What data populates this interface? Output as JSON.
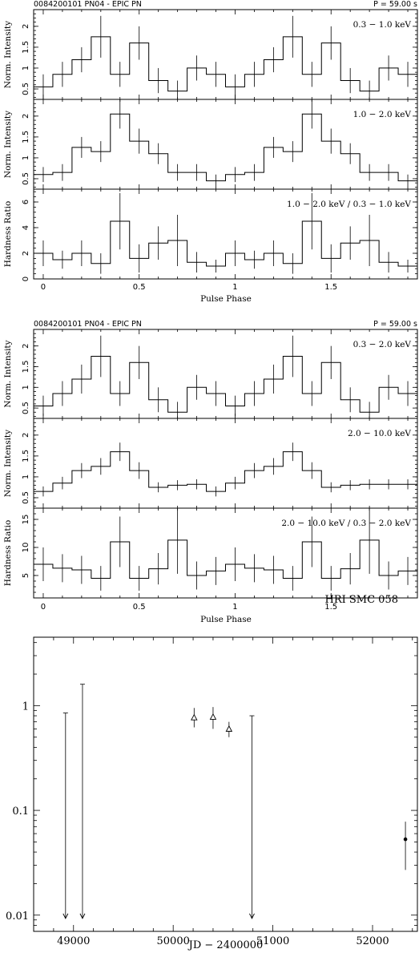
{
  "blocks": [
    {
      "header_left": "0084200101 PN04 - EPIC PN",
      "header_right": "P =  59.00 s",
      "xlabel": "Pulse Phase",
      "panels": [
        {
          "band": "0.3 − 1.0 keV",
          "ylabel": "Norm. Intensity",
          "values": [
            0.55,
            0.85,
            1.2,
            1.75,
            0.85,
            1.6,
            0.7,
            0.45,
            1.0,
            0.85,
            0.55,
            0.85,
            1.2,
            1.75,
            0.85,
            1.6,
            0.7,
            0.45,
            1.0,
            0.85
          ],
          "errors": [
            0.3,
            0.3,
            0.3,
            0.5,
            0.3,
            0.4,
            0.3,
            0.25,
            0.3,
            0.3,
            0.3,
            0.3,
            0.3,
            0.5,
            0.3,
            0.4,
            0.3,
            0.25,
            0.3,
            0.3
          ],
          "ylim": [
            0.25,
            2.4
          ],
          "yticks": [
            0.5,
            1,
            1.5,
            2
          ]
        },
        {
          "band": "1.0 − 2.0 keV",
          "ylabel": "Norm. Intensity",
          "values": [
            0.6,
            0.65,
            1.25,
            1.15,
            2.05,
            1.4,
            1.1,
            0.65,
            0.65,
            0.45,
            0.6,
            0.65,
            1.25,
            1.15,
            2.05,
            1.4,
            1.1,
            0.65,
            0.65,
            0.45
          ],
          "errors": [
            0.18,
            0.2,
            0.25,
            0.25,
            0.35,
            0.3,
            0.25,
            0.2,
            0.2,
            0.15,
            0.18,
            0.2,
            0.25,
            0.25,
            0.35,
            0.3,
            0.25,
            0.2,
            0.2,
            0.15
          ],
          "ylim": [
            0.25,
            2.4
          ],
          "yticks": [
            0.5,
            1,
            1.5,
            2
          ]
        },
        {
          "band": "1.0 − 2.0 keV / 0.3 − 1.0 keV",
          "ylabel": "Hardness Ratio",
          "values": [
            2.0,
            1.5,
            2.0,
            1.2,
            4.5,
            1.6,
            2.8,
            3.0,
            1.3,
            1.0,
            2.0,
            1.5,
            2.0,
            1.2,
            4.5,
            1.6,
            2.8,
            3.0,
            1.3,
            1.0
          ],
          "errors": [
            1.0,
            0.7,
            1.0,
            0.8,
            2.2,
            1.1,
            1.3,
            2.0,
            0.8,
            0.5,
            1.0,
            0.7,
            1.0,
            0.8,
            2.2,
            1.1,
            1.3,
            2.0,
            0.8,
            0.5
          ],
          "ylim": [
            0,
            7.0
          ],
          "yticks": [
            0,
            2,
            4,
            6
          ]
        }
      ]
    },
    {
      "header_left": "0084200101 PN04 - EPIC PN",
      "header_right": "P =  59.00 s",
      "xlabel": "Pulse Phase",
      "panels": [
        {
          "band": "0.3 − 2.0 keV",
          "ylabel": "Norm. Intensity",
          "values": [
            0.55,
            0.85,
            1.2,
            1.75,
            0.85,
            1.6,
            0.7,
            0.4,
            1.0,
            0.85,
            0.55,
            0.85,
            1.2,
            1.75,
            0.85,
            1.6,
            0.7,
            0.4,
            1.0,
            0.85
          ],
          "errors": [
            0.25,
            0.3,
            0.35,
            0.5,
            0.3,
            0.4,
            0.3,
            0.25,
            0.3,
            0.3,
            0.25,
            0.3,
            0.35,
            0.5,
            0.3,
            0.4,
            0.3,
            0.25,
            0.3,
            0.3
          ],
          "ylim": [
            0.25,
            2.4
          ],
          "yticks": [
            0.5,
            1,
            1.5,
            2
          ]
        },
        {
          "band": "2.0 − 10.0 keV",
          "ylabel": "Norm. Intensity",
          "values": [
            0.65,
            0.85,
            1.15,
            1.25,
            1.6,
            1.15,
            0.75,
            0.8,
            0.82,
            0.65,
            0.85,
            1.15,
            1.25,
            1.6,
            1.15,
            0.75,
            0.8,
            0.82,
            0.82,
            0.82
          ],
          "errors": [
            0.12,
            0.15,
            0.18,
            0.2,
            0.22,
            0.2,
            0.12,
            0.12,
            0.12,
            0.12,
            0.15,
            0.18,
            0.2,
            0.22,
            0.2,
            0.12,
            0.12,
            0.12,
            0.12,
            0.12
          ],
          "ylim": [
            0.25,
            2.4
          ],
          "yticks": [
            0.5,
            1,
            1.5,
            2
          ]
        },
        {
          "band": "2.0 − 10.0 keV / 0.3 − 2.0 keV",
          "ylabel": "Hardness Ratio",
          "values": [
            7.0,
            6.3,
            6.0,
            4.5,
            11.0,
            4.5,
            6.2,
            11.3,
            5.0,
            5.8,
            7.0,
            6.3,
            6.0,
            4.5,
            11.0,
            4.5,
            6.2,
            11.3,
            5.0,
            5.8
          ],
          "errors": [
            3.0,
            2.5,
            2.5,
            2.2,
            4.5,
            2.2,
            2.8,
            6.0,
            2.5,
            2.5,
            3.0,
            2.5,
            2.5,
            2.2,
            4.5,
            2.2,
            2.8,
            6.0,
            2.5,
            2.5
          ],
          "ylim": [
            1,
            17
          ],
          "yticks": [
            5,
            10,
            15
          ]
        }
      ]
    }
  ],
  "phase_xlim": [
    -0.05,
    1.95
  ],
  "phase_xticks": [
    0,
    0.5,
    1,
    1.5
  ],
  "lightcurve": {
    "title": "HRI SMC 058",
    "xlabel": "JD − 2400000",
    "xlim": [
      48600,
      52450
    ],
    "xticks": [
      49000,
      50000,
      51000,
      52000
    ],
    "ylim_log": [
      0.007,
      4.5
    ],
    "yticks": [
      0.01,
      0.1,
      1
    ],
    "ytick_labels": [
      "0.01",
      "0.1",
      "1"
    ],
    "upper_limits": [
      {
        "x": 48920,
        "y": 0.85
      },
      {
        "x": 49090,
        "y": 1.6
      },
      {
        "x": 50790,
        "y": 0.8
      }
    ],
    "triangles": [
      {
        "x": 50210,
        "y": 0.77,
        "lo": 0.62,
        "hi": 0.95
      },
      {
        "x": 50400,
        "y": 0.78,
        "lo": 0.6,
        "hi": 0.97
      },
      {
        "x": 50560,
        "y": 0.6,
        "lo": 0.5,
        "hi": 0.7
      }
    ],
    "detections": [
      {
        "x": 52330,
        "y": 0.053,
        "lo": 0.027,
        "hi": 0.078
      }
    ]
  },
  "chart_data": [
    {
      "type": "line",
      "title": "0084200101 PN04 - EPIC PN",
      "xlabel": "Pulse Phase",
      "series": [
        {
          "name": "0.3 − 1.0 keV",
          "values": [
            0.55,
            0.85,
            1.2,
            1.75,
            0.85,
            1.6,
            0.7,
            0.45,
            1.0,
            0.85,
            0.55,
            0.85,
            1.2,
            1.75,
            0.85,
            1.6,
            0.7,
            0.45,
            1.0,
            0.85
          ]
        },
        {
          "name": "1.0 − 2.0 keV",
          "values": [
            0.6,
            0.65,
            1.25,
            1.15,
            2.05,
            1.4,
            1.1,
            0.65,
            0.65,
            0.45,
            0.6,
            0.65,
            1.25,
            1.15,
            2.05,
            1.4,
            1.1,
            0.65,
            0.65,
            0.45
          ]
        },
        {
          "name": "1.0 − 2.0 keV / 0.3 − 1.0 keV",
          "values": [
            2.0,
            1.5,
            2.0,
            1.2,
            4.5,
            1.6,
            2.8,
            3.0,
            1.3,
            1.0,
            2.0,
            1.5,
            2.0,
            1.2,
            4.5,
            1.6,
            2.8,
            3.0,
            1.3,
            1.0
          ]
        }
      ]
    },
    {
      "type": "line",
      "title": "0084200101 PN04 - EPIC PN",
      "xlabel": "Pulse Phase",
      "series": [
        {
          "name": "0.3 − 2.0 keV",
          "values": [
            0.55,
            0.85,
            1.2,
            1.75,
            0.85,
            1.6,
            0.7,
            0.4,
            1.0,
            0.85,
            0.55,
            0.85,
            1.2,
            1.75,
            0.85,
            1.6,
            0.7,
            0.4,
            1.0,
            0.85
          ]
        },
        {
          "name": "2.0 − 10.0 keV",
          "values": [
            0.65,
            0.85,
            1.15,
            1.25,
            1.6,
            1.15,
            0.75,
            0.8,
            0.82,
            0.65,
            0.85,
            1.15,
            1.25,
            1.6,
            1.15,
            0.75,
            0.8,
            0.82,
            0.82,
            0.82
          ]
        },
        {
          "name": "2.0 − 10.0 keV / 0.3 − 2.0 keV",
          "values": [
            7.0,
            6.3,
            6.0,
            4.5,
            11.0,
            4.5,
            6.2,
            11.3,
            5.0,
            5.8,
            7.0,
            6.3,
            6.0,
            4.5,
            11.0,
            4.5,
            6.2,
            11.3,
            5.0,
            5.8
          ]
        }
      ]
    },
    {
      "type": "scatter",
      "title": "HRI SMC 058",
      "xlabel": "JD − 2400000",
      "xlim": [
        48600,
        52450
      ],
      "yscale": "log",
      "points": [
        {
          "x": 48920,
          "y": 0.85,
          "kind": "upper limit"
        },
        {
          "x": 49090,
          "y": 1.6,
          "kind": "upper limit"
        },
        {
          "x": 50210,
          "y": 0.77,
          "kind": "triangle"
        },
        {
          "x": 50400,
          "y": 0.78,
          "kind": "triangle"
        },
        {
          "x": 50560,
          "y": 0.6,
          "kind": "triangle"
        },
        {
          "x": 50790,
          "y": 0.8,
          "kind": "upper limit"
        },
        {
          "x": 52330,
          "y": 0.053,
          "kind": "detection"
        }
      ]
    }
  ]
}
